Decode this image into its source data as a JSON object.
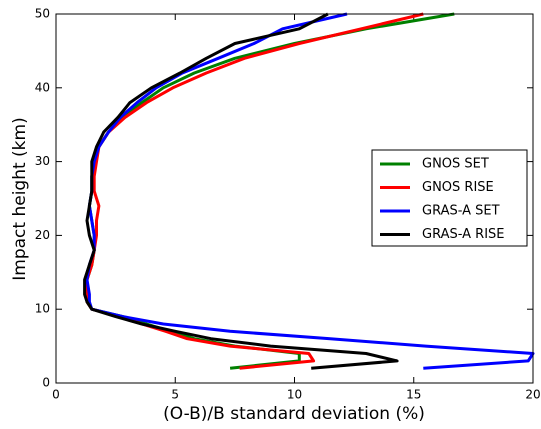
{
  "chart_data": {
    "type": "line",
    "xlabel": "(O-B)/B standard deviation (%)",
    "ylabel": "Impact height (km)",
    "xlim": [
      0,
      20
    ],
    "xticks": [
      0,
      5,
      10,
      15,
      20
    ],
    "ylim": [
      0,
      50
    ],
    "yticks": [
      0,
      10,
      20,
      30,
      40,
      50
    ],
    "legend": "right",
    "y": [
      2,
      3,
      4,
      5,
      6,
      7,
      8,
      9,
      10,
      11,
      12,
      14,
      16,
      18,
      20,
      22,
      24,
      26,
      28,
      30,
      32,
      34,
      36,
      38,
      40,
      42,
      44,
      46,
      48,
      50
    ],
    "series": [
      {
        "name": "GNOS SET",
        "color": "#008000",
        "values": [
          7.3,
          10.2,
          10.2,
          7.5,
          5.8,
          4.8,
          3.8,
          2.8,
          1.5,
          1.3,
          1.3,
          1.3,
          1.5,
          1.6,
          1.6,
          1.5,
          1.4,
          1.5,
          1.5,
          1.6,
          1.8,
          2.2,
          2.8,
          3.6,
          4.5,
          5.8,
          7.5,
          10,
          13,
          16.7
        ]
      },
      {
        "name": "GNOS RISE",
        "color": "#ff0000",
        "values": [
          7.7,
          10.8,
          10.6,
          7.3,
          5.5,
          4.6,
          3.6,
          2.7,
          1.5,
          1.3,
          1.3,
          1.3,
          1.5,
          1.6,
          1.7,
          1.7,
          1.8,
          1.6,
          1.6,
          1.7,
          1.8,
          2.2,
          2.9,
          3.8,
          4.9,
          6.3,
          7.9,
          10.2,
          12.8,
          15.4
        ]
      },
      {
        "name": "GRAS-A SET",
        "color": "#0000ff",
        "values": [
          15.4,
          19.8,
          20,
          15.5,
          11.5,
          7.3,
          4.5,
          2.8,
          1.5,
          1.4,
          1.4,
          1.3,
          1.4,
          1.6,
          1.6,
          1.5,
          1.4,
          1.5,
          1.5,
          1.6,
          1.8,
          2.2,
          2.7,
          3.4,
          4.2,
          5.3,
          6.8,
          8.3,
          9.5,
          12.2
        ]
      },
      {
        "name": "GRAS-A RISE",
        "color": "#000000",
        "values": [
          10.7,
          14.3,
          13,
          9,
          6.5,
          5,
          3.6,
          2.5,
          1.5,
          1.3,
          1.2,
          1.2,
          1.4,
          1.6,
          1.4,
          1.3,
          1.4,
          1.5,
          1.5,
          1.5,
          1.7,
          2,
          2.6,
          3.1,
          4,
          5.2,
          6.3,
          7.5,
          10.2,
          11.4
        ]
      }
    ]
  }
}
